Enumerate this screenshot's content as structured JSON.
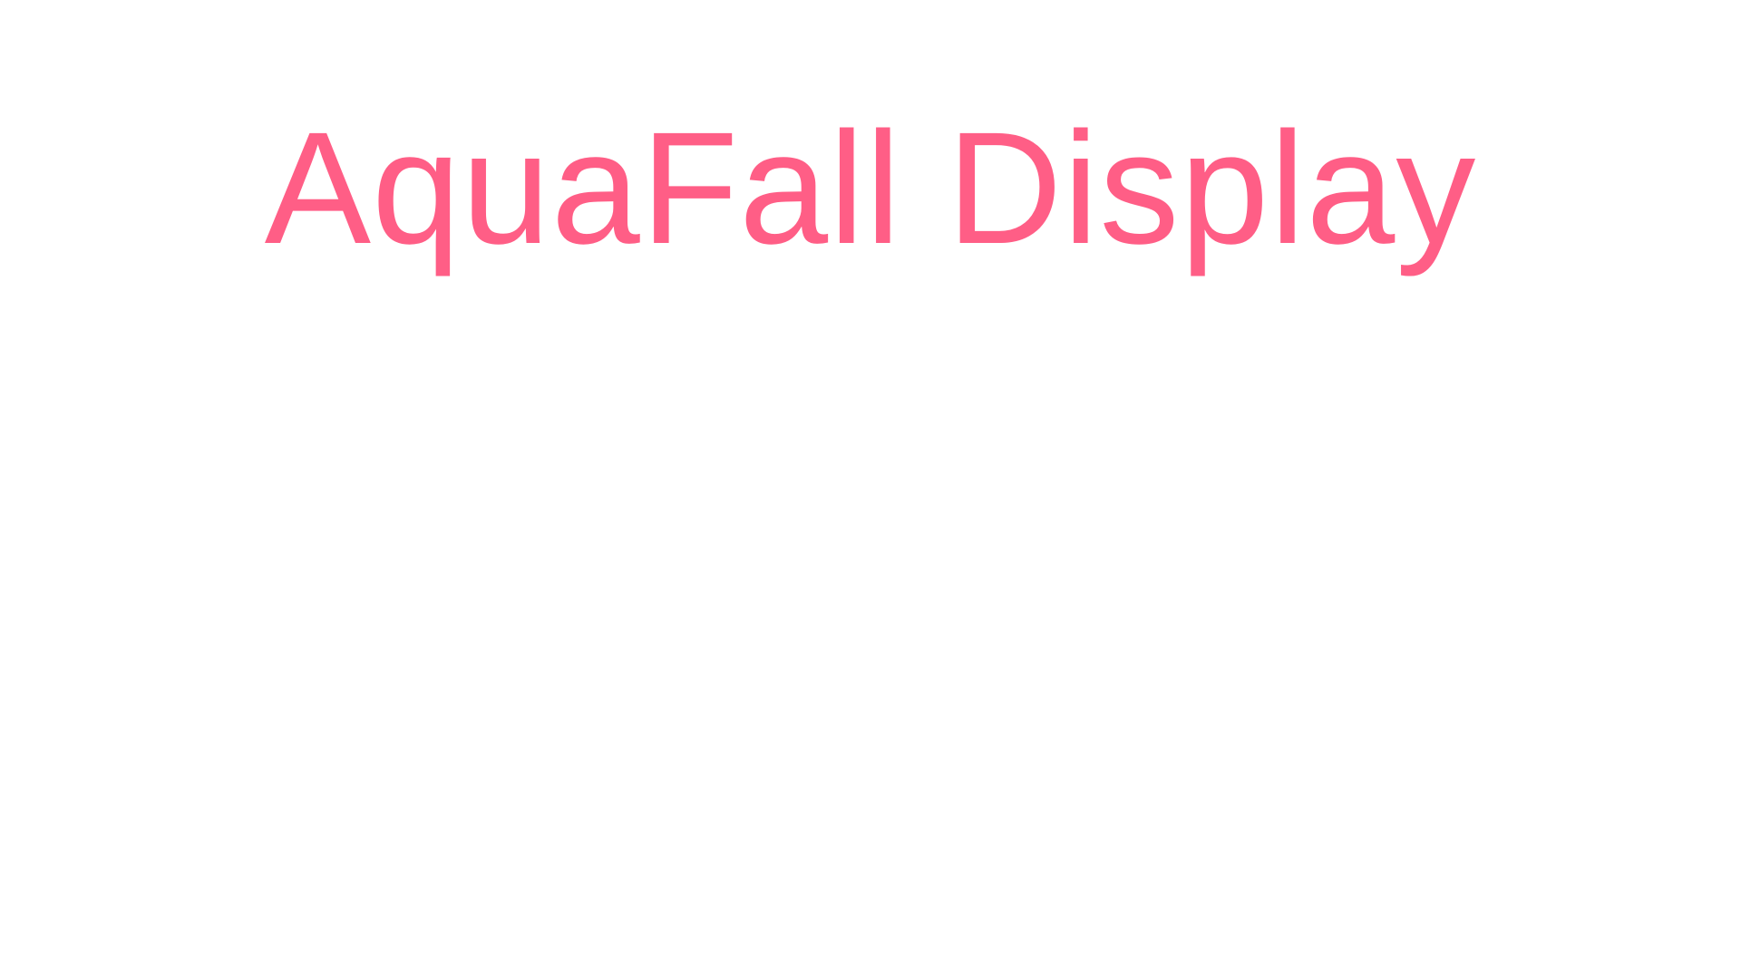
{
  "page": {
    "title": "AquaFall Display"
  },
  "colors": {
    "background": "#ffffff",
    "title": "#ff5e86"
  }
}
